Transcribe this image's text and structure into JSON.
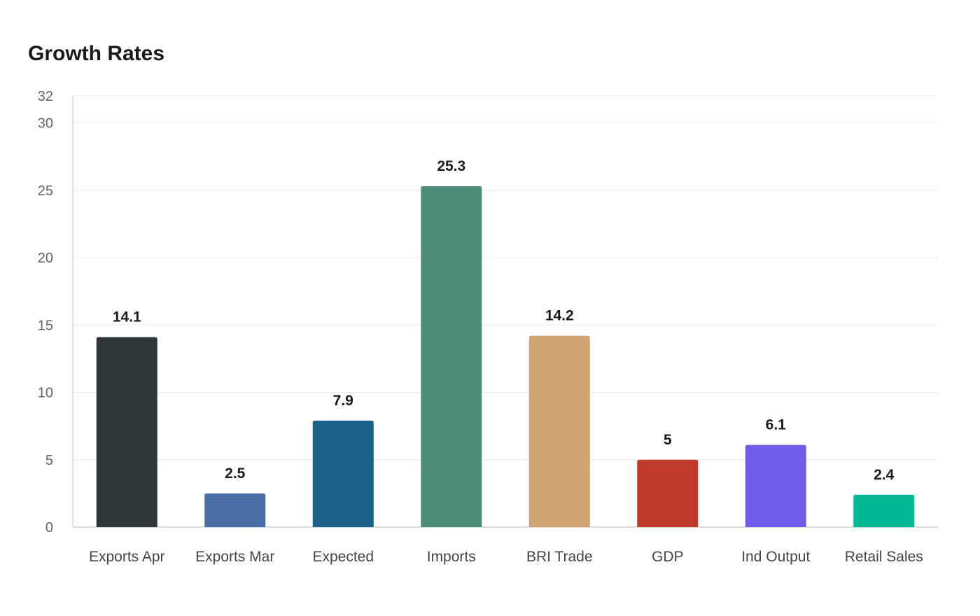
{
  "chart_data": {
    "type": "bar",
    "title": "Growth Rates",
    "xlabel": "",
    "ylabel": "",
    "categories": [
      "Exports Apr",
      "Exports Mar",
      "Expected",
      "Imports",
      "BRI Trade",
      "GDP",
      "Ind Output",
      "Retail Sales"
    ],
    "values": [
      14.1,
      2.5,
      7.9,
      25.3,
      14.2,
      5,
      6.1,
      2.4
    ],
    "value_labels": [
      "14.1",
      "2.5",
      "7.9",
      "25.3",
      "14.2",
      "5",
      "6.1",
      "2.4"
    ],
    "colors": [
      "#2e3638",
      "#4a6fa5",
      "#1a6088",
      "#4e8c7a",
      "#d1a473",
      "#c0392b",
      "#6f5ce8",
      "#00b894"
    ],
    "ylim": [
      0,
      32
    ],
    "yticks": [
      0,
      5,
      10,
      15,
      20,
      25,
      30,
      32
    ],
    "ytick_labels": [
      "0",
      "5",
      "10",
      "15",
      "20",
      "25",
      "30",
      "32"
    ],
    "grid": true,
    "legend": "none"
  }
}
